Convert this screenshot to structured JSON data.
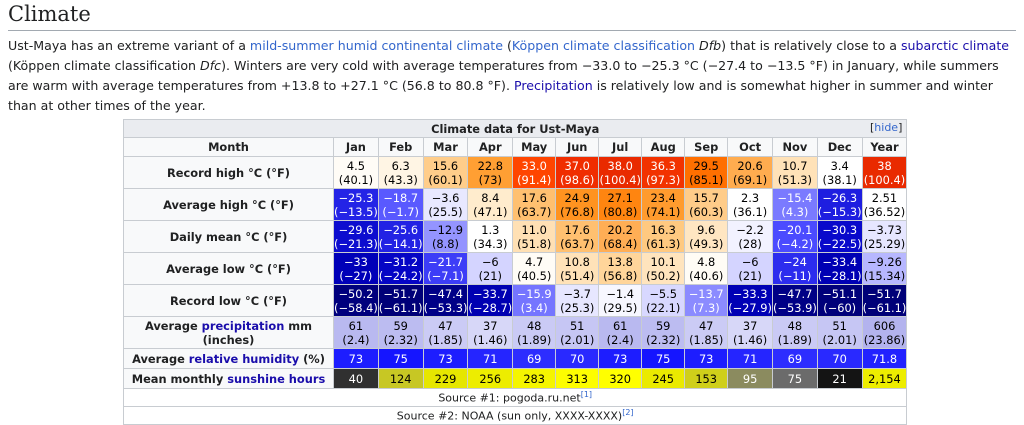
{
  "section_title": "Climate",
  "intro": {
    "t1": "Ust-Maya has an extreme variant of a ",
    "link1": "mild-summer humid continental climate",
    "t2": " (",
    "link2": "Köppen climate classification",
    "t3": " Dfb",
    "t4": ") that is relatively close to a ",
    "link3": "subarctic climate",
    "t5": " (Köppen climate classification ",
    "t6": "Dfc",
    "t7": "). Winters are very cold with average temperatures from −33.0 to −25.3 °C (−27.4 to −13.5 °F) in January, while summers are warm with average temperatures from +13.8 to +27.1 °C (56.8 to 80.8 °F). ",
    "link4": "Precipitation",
    "t8": " is relatively low and is somewhat higher in summer and winter than at other times of the year."
  },
  "table": {
    "caption": "Climate data for Ust-Maya",
    "hide_label": "hide",
    "header": [
      "Month",
      "Jan",
      "Feb",
      "Mar",
      "Apr",
      "May",
      "Jun",
      "Jul",
      "Aug",
      "Sep",
      "Oct",
      "Nov",
      "Dec",
      "Year"
    ],
    "rows": [
      {
        "label": "Record high °C (°F)",
        "cells": [
          {
            "a": "4.5",
            "b": "(40.1)",
            "bg": "#fffcf6",
            "fg": "#000000"
          },
          {
            "a": "6.3",
            "b": "(43.3)",
            "bg": "#fff5e4",
            "fg": "#000000"
          },
          {
            "a": "15.6",
            "b": "(60.1)",
            "bg": "#ffcd8a",
            "fg": "#000000"
          },
          {
            "a": "22.8",
            "b": "(73)",
            "bg": "#ff9f33",
            "fg": "#000000"
          },
          {
            "a": "33.0",
            "b": "(91.4)",
            "bg": "#ff4500",
            "fg": "#ffffff"
          },
          {
            "a": "37.0",
            "b": "(98.6)",
            "bg": "#f02d00",
            "fg": "#ffffff"
          },
          {
            "a": "38.0",
            "b": "(100.4)",
            "bg": "#e92a00",
            "fg": "#ffffff"
          },
          {
            "a": "36.3",
            "b": "(97.3)",
            "bg": "#f23200",
            "fg": "#ffffff"
          },
          {
            "a": "29.5",
            "b": "(85.1)",
            "bg": "#ff6f00",
            "fg": "#000000"
          },
          {
            "a": "20.6",
            "b": "(69.1)",
            "bg": "#ffac4f",
            "fg": "#000000"
          },
          {
            "a": "10.7",
            "b": "(51.3)",
            "bg": "#ffe2b8",
            "fg": "#000000"
          },
          {
            "a": "3.4",
            "b": "(38.1)",
            "bg": "#ffffff",
            "fg": "#000000"
          },
          {
            "a": "38",
            "b": "(100.4)",
            "bg": "#e92a00",
            "fg": "#ffffff"
          }
        ]
      },
      {
        "label": "Average high °C (°F)",
        "cells": [
          {
            "a": "−25.3",
            "b": "(−13.5)",
            "bg": "#2424e6",
            "fg": "#ffffff"
          },
          {
            "a": "−18.7",
            "b": "(−1.7)",
            "bg": "#5959ff",
            "fg": "#ffffff"
          },
          {
            "a": "−3.6",
            "b": "(25.5)",
            "bg": "#e8e8ff",
            "fg": "#000000"
          },
          {
            "a": "8.4",
            "b": "(47.1)",
            "bg": "#ffeccd",
            "fg": "#000000"
          },
          {
            "a": "17.6",
            "b": "(63.7)",
            "bg": "#ffc070",
            "fg": "#000000"
          },
          {
            "a": "24.9",
            "b": "(76.8)",
            "bg": "#ff9320",
            "fg": "#000000"
          },
          {
            "a": "27.1",
            "b": "(80.8)",
            "bg": "#ff8510",
            "fg": "#000000"
          },
          {
            "a": "23.4",
            "b": "(74.1)",
            "bg": "#ff9b2e",
            "fg": "#000000"
          },
          {
            "a": "15.7",
            "b": "(60.3)",
            "bg": "#ffcc89",
            "fg": "#000000"
          },
          {
            "a": "2.3",
            "b": "(36.1)",
            "bg": "#ffffff",
            "fg": "#000000"
          },
          {
            "a": "−15.4",
            "b": "(4.3)",
            "bg": "#7a7aff",
            "fg": "#ffffff"
          },
          {
            "a": "−26.3",
            "b": "(−15.3)",
            "bg": "#1e1ee0",
            "fg": "#ffffff"
          },
          {
            "a": "2.51",
            "b": "(36.52)",
            "bg": "#ffffff",
            "fg": "#000000"
          }
        ]
      },
      {
        "label": "Daily mean °C (°F)",
        "cells": [
          {
            "a": "−29.6",
            "b": "(−21.3)",
            "bg": "#0d0dcf",
            "fg": "#ffffff"
          },
          {
            "a": "−25.6",
            "b": "(−14.1)",
            "bg": "#2222e4",
            "fg": "#ffffff"
          },
          {
            "a": "−12.9",
            "b": "(8.8)",
            "bg": "#9494ff",
            "fg": "#000000"
          },
          {
            "a": "1.3",
            "b": "(34.3)",
            "bg": "#ffffff",
            "fg": "#000000"
          },
          {
            "a": "11.0",
            "b": "(51.8)",
            "bg": "#ffe0b4",
            "fg": "#000000"
          },
          {
            "a": "17.6",
            "b": "(63.7)",
            "bg": "#ffc070",
            "fg": "#000000"
          },
          {
            "a": "20.2",
            "b": "(68.4)",
            "bg": "#ffae55",
            "fg": "#000000"
          },
          {
            "a": "16.3",
            "b": "(61.3)",
            "bg": "#ffc980",
            "fg": "#000000"
          },
          {
            "a": "9.6",
            "b": "(49.3)",
            "bg": "#ffe6c2",
            "fg": "#000000"
          },
          {
            "a": "−2.2",
            "b": "(28)",
            "bg": "#f2f2ff",
            "fg": "#000000"
          },
          {
            "a": "−20.1",
            "b": "(−4.2)",
            "bg": "#4b4bff",
            "fg": "#ffffff"
          },
          {
            "a": "−30.3",
            "b": "(−22.5)",
            "bg": "#0909cb",
            "fg": "#ffffff"
          },
          {
            "a": "−3.73",
            "b": "(25.29)",
            "bg": "#e6e6ff",
            "fg": "#000000"
          }
        ]
      },
      {
        "label": "Average low °C (°F)",
        "cells": [
          {
            "a": "−33",
            "b": "(−27)",
            "bg": "#0000b8",
            "fg": "#ffffff"
          },
          {
            "a": "−31.2",
            "b": "(−24.2)",
            "bg": "#0505c5",
            "fg": "#ffffff"
          },
          {
            "a": "−21.7",
            "b": "(−7.1)",
            "bg": "#3d3df7",
            "fg": "#ffffff"
          },
          {
            "a": "−6",
            "b": "(21)",
            "bg": "#d4d4ff",
            "fg": "#000000"
          },
          {
            "a": "4.7",
            "b": "(40.5)",
            "bg": "#fffcf6",
            "fg": "#000000"
          },
          {
            "a": "10.8",
            "b": "(51.4)",
            "bg": "#ffe2b8",
            "fg": "#000000"
          },
          {
            "a": "13.8",
            "b": "(56.8)",
            "bg": "#ffd59a",
            "fg": "#000000"
          },
          {
            "a": "10.1",
            "b": "(50.2)",
            "bg": "#ffe4bd",
            "fg": "#000000"
          },
          {
            "a": "4.8",
            "b": "(40.6)",
            "bg": "#fffcf5",
            "fg": "#000000"
          },
          {
            "a": "−6",
            "b": "(21)",
            "bg": "#d4d4ff",
            "fg": "#000000"
          },
          {
            "a": "−24",
            "b": "(−11)",
            "bg": "#2c2cee",
            "fg": "#ffffff"
          },
          {
            "a": "−33.4",
            "b": "(−28.1)",
            "bg": "#0000b4",
            "fg": "#ffffff"
          },
          {
            "a": "−9.26",
            "b": "(15.34)",
            "bg": "#b7b7ff",
            "fg": "#000000"
          }
        ]
      },
      {
        "label": "Record low °C (°F)",
        "cells": [
          {
            "a": "−50.2",
            "b": "(−58.4)",
            "bg": "#00007d",
            "fg": "#ffffff"
          },
          {
            "a": "−51.7",
            "b": "(−61.1)",
            "bg": "#000078",
            "fg": "#ffffff"
          },
          {
            "a": "−47.4",
            "b": "(−53.3)",
            "bg": "#000087",
            "fg": "#ffffff"
          },
          {
            "a": "−33.7",
            "b": "(−28.7)",
            "bg": "#0000b2",
            "fg": "#ffffff"
          },
          {
            "a": "−15.9",
            "b": "(3.4)",
            "bg": "#7575ff",
            "fg": "#ffffff"
          },
          {
            "a": "−3.7",
            "b": "(25.3)",
            "bg": "#e7e7ff",
            "fg": "#000000"
          },
          {
            "a": "−1.4",
            "b": "(29.5)",
            "bg": "#f7f7ff",
            "fg": "#000000"
          },
          {
            "a": "−5.5",
            "b": "(22.1)",
            "bg": "#d8d8ff",
            "fg": "#000000"
          },
          {
            "a": "−13.7",
            "b": "(7.3)",
            "bg": "#8b8bff",
            "fg": "#ffffff"
          },
          {
            "a": "−33.3",
            "b": "(−27.9)",
            "bg": "#0000b5",
            "fg": "#ffffff"
          },
          {
            "a": "−47.7",
            "b": "(−53.9)",
            "bg": "#000086",
            "fg": "#ffffff"
          },
          {
            "a": "−51.1",
            "b": "(−60)",
            "bg": "#00007a",
            "fg": "#ffffff"
          },
          {
            "a": "−51.7",
            "b": "(−61.1)",
            "bg": "#000078",
            "fg": "#ffffff"
          }
        ]
      },
      {
        "label_pre": "Average ",
        "label_link": "precipitation",
        "label_post": " mm (inches)",
        "cells": [
          {
            "a": "61",
            "b": "(2.4)",
            "bg": "#b9b9f0",
            "fg": "#000000"
          },
          {
            "a": "59",
            "b": "(2.32)",
            "bg": "#bcbcf1",
            "fg": "#000000"
          },
          {
            "a": "47",
            "b": "(1.85)",
            "bg": "#cbcbf5",
            "fg": "#000000"
          },
          {
            "a": "37",
            "b": "(1.46)",
            "bg": "#d7d7f8",
            "fg": "#000000"
          },
          {
            "a": "48",
            "b": "(1.89)",
            "bg": "#cacaf5",
            "fg": "#000000"
          },
          {
            "a": "51",
            "b": "(2.01)",
            "bg": "#c6c6f4",
            "fg": "#000000"
          },
          {
            "a": "61",
            "b": "(2.4)",
            "bg": "#b9b9f0",
            "fg": "#000000"
          },
          {
            "a": "59",
            "b": "(2.32)",
            "bg": "#bcbcf1",
            "fg": "#000000"
          },
          {
            "a": "47",
            "b": "(1.85)",
            "bg": "#cbcbf5",
            "fg": "#000000"
          },
          {
            "a": "37",
            "b": "(1.46)",
            "bg": "#d7d7f8",
            "fg": "#000000"
          },
          {
            "a": "48",
            "b": "(1.89)",
            "bg": "#cacaf5",
            "fg": "#000000"
          },
          {
            "a": "51",
            "b": "(2.01)",
            "bg": "#c6c6f4",
            "fg": "#000000"
          },
          {
            "a": "606",
            "b": "(23.86)",
            "bg": "#b3b3ee",
            "fg": "#000000"
          }
        ]
      },
      {
        "label_pre": "Average ",
        "label_link": "relative humidity",
        "label_post": " (%)",
        "cells": [
          {
            "a": "73",
            "bg": "#1d1dff",
            "fg": "#ffffff"
          },
          {
            "a": "75",
            "bg": "#1515ff",
            "fg": "#ffffff"
          },
          {
            "a": "73",
            "bg": "#1d1dff",
            "fg": "#ffffff"
          },
          {
            "a": "71",
            "bg": "#2525ff",
            "fg": "#ffffff"
          },
          {
            "a": "69",
            "bg": "#2d2dff",
            "fg": "#ffffff"
          },
          {
            "a": "70",
            "bg": "#2929ff",
            "fg": "#ffffff"
          },
          {
            "a": "73",
            "bg": "#1d1dff",
            "fg": "#ffffff"
          },
          {
            "a": "75",
            "bg": "#1515ff",
            "fg": "#ffffff"
          },
          {
            "a": "73",
            "bg": "#1d1dff",
            "fg": "#ffffff"
          },
          {
            "a": "71",
            "bg": "#2525ff",
            "fg": "#ffffff"
          },
          {
            "a": "69",
            "bg": "#2d2dff",
            "fg": "#ffffff"
          },
          {
            "a": "70",
            "bg": "#2929ff",
            "fg": "#ffffff"
          },
          {
            "a": "71.8",
            "bg": "#2222ff",
            "fg": "#ffffff"
          }
        ]
      },
      {
        "label_pre": "Mean monthly ",
        "label_link": "sunshine hours",
        "label_post": "",
        "cells": [
          {
            "a": "40",
            "bg": "#303030",
            "fg": "#ffffff"
          },
          {
            "a": "124",
            "bg": "#c7c724",
            "fg": "#000000"
          },
          {
            "a": "229",
            "bg": "#e6e600",
            "fg": "#000000"
          },
          {
            "a": "256",
            "bg": "#eded00",
            "fg": "#000000"
          },
          {
            "a": "283",
            "bg": "#f5f500",
            "fg": "#000000"
          },
          {
            "a": "313",
            "bg": "#fdfd00",
            "fg": "#000000"
          },
          {
            "a": "320",
            "bg": "#ffff00",
            "fg": "#000000"
          },
          {
            "a": "245",
            "bg": "#eaea00",
            "fg": "#000000"
          },
          {
            "a": "153",
            "bg": "#cfcf1a",
            "fg": "#000000"
          },
          {
            "a": "95",
            "bg": "#8b8b5f",
            "fg": "#ffffff"
          },
          {
            "a": "75",
            "bg": "#6b6b6b",
            "fg": "#ffffff"
          },
          {
            "a": "21",
            "bg": "#141414",
            "fg": "#ffffff"
          },
          {
            "a": "2,154",
            "bg": "#eded00",
            "fg": "#000000"
          }
        ]
      }
    ],
    "source1": "Source #1: pogoda.ru.net",
    "source1_ref": "[1]",
    "source2": "Source #2: NOAA (sun only, XXXX-XXXX)",
    "source2_ref": "[2]"
  }
}
